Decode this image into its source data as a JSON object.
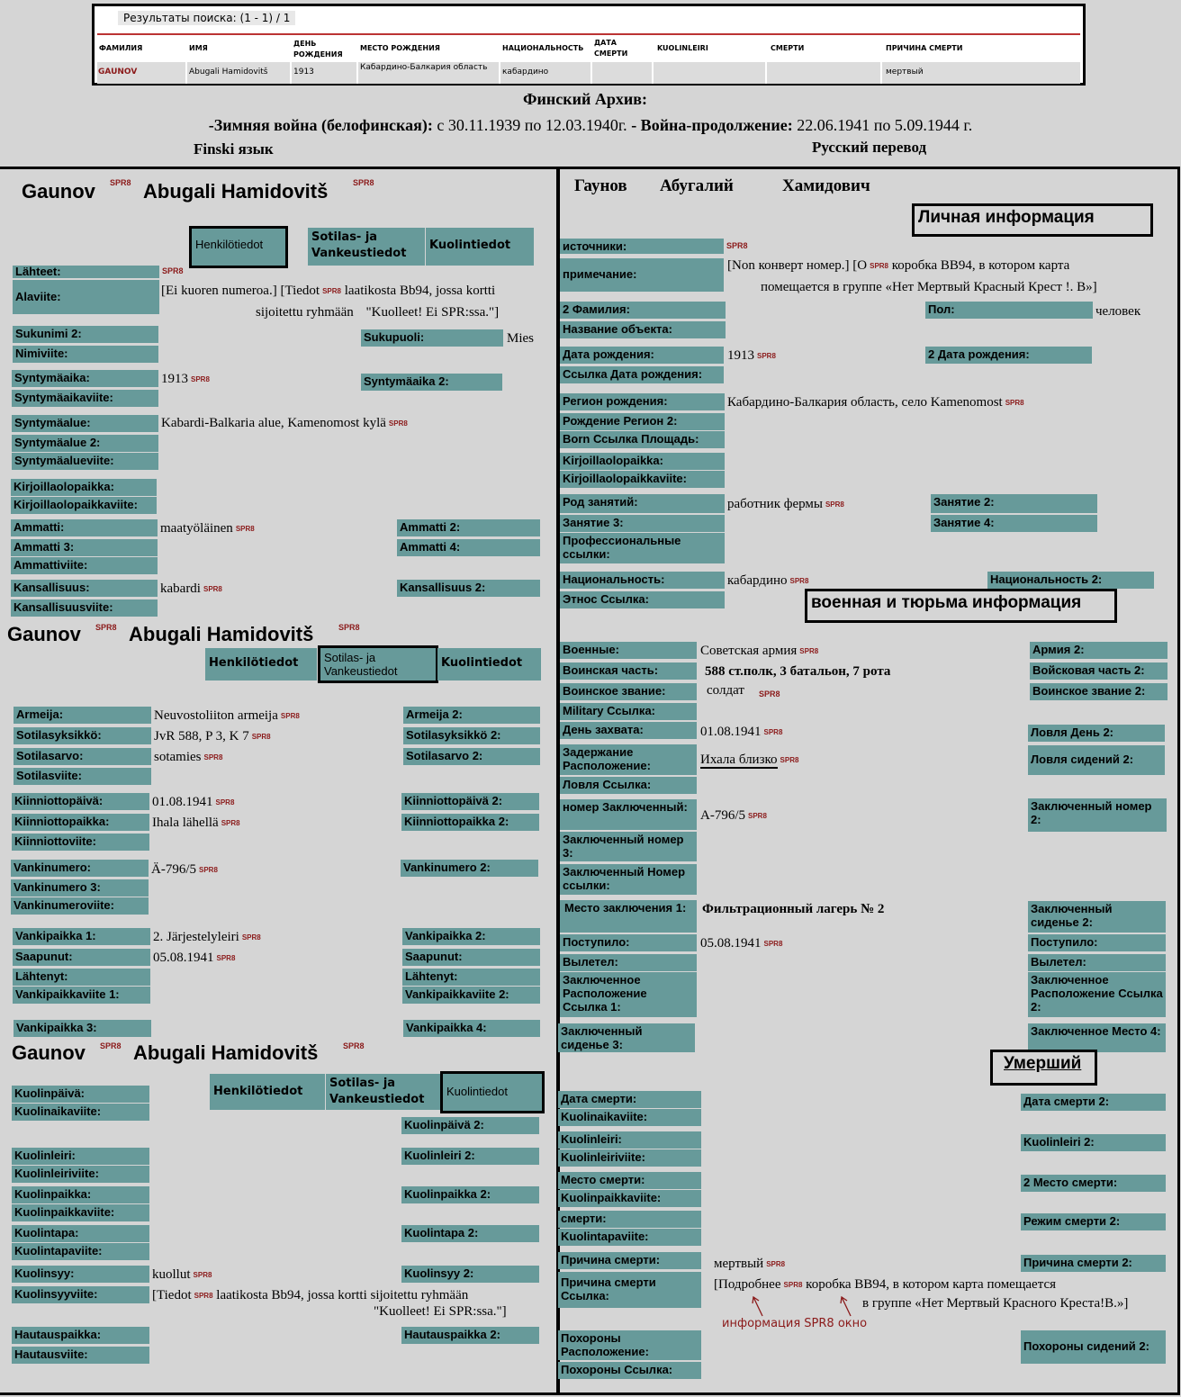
{
  "top": {
    "results_label": "Результаты поиска: (1 - 1) / 1",
    "headers": [
      "фамилия",
      "имя",
      "день рождения",
      "место рождения",
      "национальность",
      "дата смерти",
      "kuolinleiri",
      "смерти",
      "причина смерти"
    ],
    "row": [
      "Gaunov",
      "Abugali Hamidovitš",
      "1913",
      "Кабардино-Балкария область",
      "кабардино",
      "",
      "",
      "",
      "мертвый"
    ]
  },
  "banner": {
    "title": "Финский Архив:",
    "line2_a": "-Зимняя война (белофинская):",
    "line2_b": " с 30.11.1939 по 12.03.1940г. ",
    "line2_c": "- Война-продолжение:",
    "line2_d": " 22.06.1941 по 5.09.1944 г.",
    "left_caption": "Finski язык",
    "right_caption": "Русский перевод"
  },
  "spr": "SPR8",
  "fi": {
    "surname": "Gaunov",
    "name": "Abugali Hamidovitš",
    "tabs": [
      "Henkilötiedot",
      "Sotilas- ja Vankeustiedot",
      "Kuolintiedot"
    ],
    "p1": {
      "lahteet": "Lähteet:",
      "alaviite": "Alaviite:",
      "alaviite_v1": "[Ei kuoren numeroa.] [Tiedot",
      "alaviite_v2": "laatikosta Bb94, jossa kortti",
      "alaviite_v3": "sijoitettu ryhmään",
      "alaviite_v4": "\"Kuolleet! Ei SPR:ssa.\"]",
      "sukunimi2": "Sukunimi 2:",
      "nimiviite": "Nimiviite:",
      "sukupuoli": "Sukupuoli:",
      "sukupuoli_v": "Mies",
      "syntymaaika": "Syntymäaika:",
      "syntymaaika_v": "1913",
      "syntymaaikaviite": "Syntymäaikaviite:",
      "syntymaaika2": "Syntymäaika 2:",
      "syntymaalue": "Syntymäalue:",
      "syntymaalue_v": "Kabardi-Balkaria alue, Kamenomost kylä",
      "syntymaalue2": "Syntymäalue 2:",
      "syntymaalueviite": "Syntymäalueviite:",
      "kirj": "Kirjoillaolopaikka:",
      "kirjviite": "Kirjoillaolopaikkaviite:",
      "ammatti": "Ammatti:",
      "ammatti_v": "maatyöläinen",
      "ammatti2": "Ammatti 2:",
      "ammatti3": "Ammatti 3:",
      "ammatti4": "Ammatti 4:",
      "ammattiviite": "Ammattiviite:",
      "kansallisuus": "Kansallisuus:",
      "kansallisuus_v": "kabardi",
      "kansallisuus2": "Kansallisuus 2:",
      "kansallisuusviite": "Kansallisuusviite:"
    },
    "p2": {
      "armeija": "Armeija:",
      "armeija_v": "Neuvostoliiton armeija",
      "armeija2": "Armeija 2:",
      "sotilasyksikko": "Sotilasyksikkö:",
      "sotilasyksikko_v": "JvR 588, P 3, K 7",
      "sotilasyksikko2": "Sotilasyksikkö 2:",
      "sotilasarvo": "Sotilasarvo:",
      "sotilasarvo_v": "sotamies",
      "sotilasarvo2": "Sotilasarvo 2:",
      "sotilasviite": "Sotilasviite:",
      "kiinniottopaiva": "Kiinniottopäivä:",
      "kiinniottopaiva_v": "01.08.1941",
      "kiinniottopaiva2": "Kiinniottopäivä 2:",
      "kiinniottopaikka": "Kiinniottopaikka:",
      "kiinniottopaikka_v": "Ihala lähellä",
      "kiinniottopaikka2": "Kiinniottopaikka 2:",
      "kiinniottoviite": "Kiinniottoviite:",
      "vankinumero": "Vankinumero:",
      "vankinumero_v": "Ä-796/5",
      "vankinumero2": "Vankinumero 2:",
      "vankinumero3": "Vankinumero 3:",
      "vankinumeroviite": "Vankinumeroviite:",
      "vankipaikka1": "Vankipaikka 1:",
      "vankipaikka1_v": "2. Järjestelyleiri",
      "vankipaikka2": "Vankipaikka 2:",
      "saapunut": "Saapunut:",
      "saapunut_v": "05.08.1941",
      "saapunut2": "Saapunut:",
      "lahtenyt": "Lähtenyt:",
      "lahtenyt2": "Lähtenyt:",
      "vpviite1": "Vankipaikkaviite 1:",
      "vpviite2": "Vankipaikkaviite 2:",
      "vankipaikka3": "Vankipaikka 3:",
      "vankipaikka4": "Vankipaikka 4:"
    },
    "p3": {
      "kuolinpaiva": "Kuolinpäivä:",
      "kuolinaikaviite": "Kuolinaikaviite:",
      "kuolinpaiva2": "Kuolinpäivä 2:",
      "kuolinleiri": "Kuolinleiri:",
      "kuolinleiri2": "Kuolinleiri 2:",
      "kuolinleiriviite": "Kuolinleiriviite:",
      "kuolinpaikka": "Kuolinpaikka:",
      "kuolinpaikka2": "Kuolinpaikka 2:",
      "kuolinpaikkaviite": "Kuolinpaikkaviite:",
      "kuolintapa": "Kuolintapa:",
      "kuolintapa2": "Kuolintapa 2:",
      "kuolintapaviite": "Kuolintapaviite:",
      "kuolinsyy": "Kuolinsyy:",
      "kuolinsyy_v": "kuollut",
      "kuolinsyy2": "Kuolinsyy 2:",
      "kuolinsyyviite": "Kuolinsyyviite:",
      "kuolinsyyviite_v1": "[Tiedot",
      "kuolinsyyviite_v2": "laatikosta Bb94, jossa kortti sijoitettu ryhmään",
      "kuolinsyyviite_v3": "\"Kuolleet! Ei SPR:ssa.\"]",
      "hautauspaikka": "Hautauspaikka:",
      "hautauspaikka2": "Hautauspaikka 2:",
      "hautausviite": "Hautausviite:"
    }
  },
  "ru": {
    "surname": "Гаунов",
    "name": "Абугалий",
    "patronymic": "Хамидович",
    "sec_personal": "Личная информация",
    "sec_military": "военная и тюрьма информация",
    "sec_dead": "Умерший",
    "p1": {
      "istochniki": "источники:",
      "primechanie": "примечание:",
      "prim_v1": "[Non конверт номер.] [О",
      "prim_v2": "коробка BB94, в котором карта",
      "prim_v3": "помещается в группе «Нет Мертвый Красный Крест !. В»]",
      "familiya2": "2 Фамилия:",
      "pol": "Пол:",
      "pol_v": "человек",
      "nazvanie": "Название объекта:",
      "data_rozhd": "Дата рождения:",
      "data_rozhd_v": "1913",
      "data_rozhd2": "2 Дата рождения:",
      "ssylka_data": "Ссылка Дата рождения:",
      "region": "Регион рождения:",
      "region_v": "Кабардино-Балкария область, село Kamenomost",
      "region2": "Рождение Регион 2:",
      "born_ssylka": "Born Ссылка Площадь:",
      "kirj": "Kirjoillaolopaikka:",
      "kirjviite": "Kirjoillaolopaikkaviite:",
      "rod": "Род занятий:",
      "rod_v": "работник фермы",
      "zanyatie2": "Занятие 2:",
      "zanyatie3": "Занятие 3:",
      "zanyatie4": "Занятие 4:",
      "prof_ssylki": "Профессиональные ссылки:",
      "nats": "Национальность:",
      "nats_v": "кабардино",
      "nats2": "Национальность 2:",
      "etnos": "Этнос Ссылка:"
    },
    "p2": {
      "voennye": "Военные:",
      "voennye_v": "Советская армия",
      "armiya2": "Армия 2:",
      "chast": "Воинская часть:",
      "chast_v": "588 ст.полк, 3 батальон, 7 рота",
      "chast2": "Войсковая часть 2:",
      "zvanie": "Воинское звание:",
      "zvanie_v": "солдат",
      "zvanie2": "Воинское звание 2:",
      "military_ssylka": "Military Ссылка:",
      "den_zahvata": "День захвата:",
      "den_zahvata_v": "01.08.1941",
      "lovlya_den2": "Ловля День 2:",
      "zaderzhanie": "Задержание Расположение:",
      "zaderzhanie_v": "Ихала близко",
      "lovlya_sid2": "Ловля сидений 2:",
      "lovlya_ssylka": "Ловля Ссылка:",
      "nomer_zakl": "номер Заключенный:",
      "nomer_zakl_v": "А-796/5",
      "zakl_nomer2": "Заключенный номер 2:",
      "zakl_nomer3": "Заключенный номер 3:",
      "zakl_nomer_ssylki": "Заключенный Номер ссылки:",
      "mesto_zakl": "Место заключения 1:",
      "mesto_zakl_v": "Фильтрационный лагерь № 2",
      "zakl_sid2": "Заключенный сиденье 2:",
      "postupilo": "Поступило:",
      "postupilo_v": "05.08.1941",
      "postupilo2": "Поступило:",
      "vyletel": "Вылетел:",
      "vyletel2": "Вылетел:",
      "zakl_rasp1": "Заключенное Расположение Ссылка 1:",
      "zakl_rasp2": "Заключенное Расположение Ссылка 2:",
      "zakl_sid3": "Заключенный сиденье 3:",
      "zakl_mesto4": "Заключенное Место 4:"
    },
    "p3": {
      "data_smerti": "Дата смерти:",
      "data_smerti2": "Дата смерти 2:",
      "kuolinaikaviite": "Kuolinaikaviite:",
      "kuolinleiri": "Kuolinleiri:",
      "kuolinleiri2": "Kuolinleiri 2:",
      "kuolinleiriviite": "Kuolinleiriviite:",
      "mesto_smerti": "Место смерти:",
      "mesto_smerti2": "2 Место смерти:",
      "kuolinpaikkaviite": "Kuolinpaikkaviite:",
      "smerti": "смерти:",
      "rezhim2": "Режим смерти 2:",
      "kuolintapaviite": "Kuolintapaviite:",
      "prichina": "Причина смерти:",
      "prichina_v": "мертвый",
      "prichina2": "Причина смерти 2:",
      "prichina_ssylka": "Причина смерти Ссылка:",
      "prichina_ssylka_v1": "[Подробнее",
      "prichina_ssylka_v2": "коробка BB94, в котором карта помещается",
      "prichina_ssylka_v3": "в группе «Нет Мертвый Красного Креста!В.»]",
      "info_note": "информация SPR8 окно",
      "pohorony": "Похороны Расположение:",
      "pohorony_sid2": "Похороны сидений 2:",
      "pohorony_ssylka": "Похороны Ссылка:"
    }
  }
}
